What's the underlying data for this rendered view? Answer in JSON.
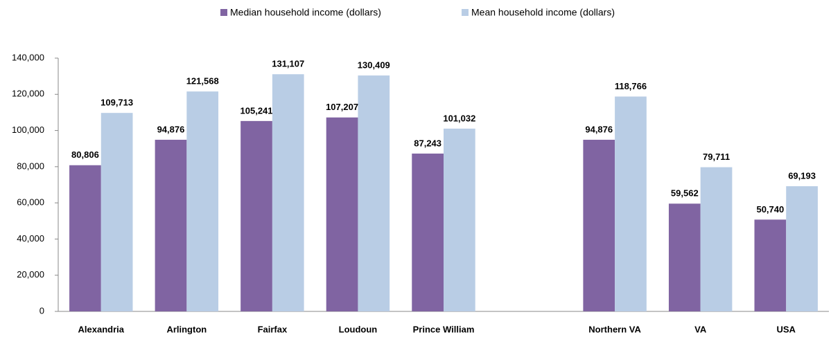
{
  "chart_data": {
    "type": "bar",
    "categories": [
      "Alexandria",
      "Arlington",
      "Fairfax",
      "Loudoun",
      "Prince William",
      null,
      "Northern VA",
      "VA",
      "USA"
    ],
    "series": [
      {
        "name": "Median household income (dollars)",
        "color": "#8064a2",
        "values": [
          80806,
          94876,
          105241,
          107207,
          87243,
          null,
          94876,
          59562,
          50740
        ],
        "value_labels": [
          "80,806",
          "94,876",
          "105,241",
          "107,207",
          "87,243",
          null,
          "94,876",
          "59,562",
          "50,740"
        ]
      },
      {
        "name": "Mean household income (dollars)",
        "color": "#b9cde5",
        "values": [
          109713,
          121568,
          131107,
          130409,
          101032,
          null,
          118766,
          79711,
          69193
        ],
        "value_labels": [
          "109,713",
          "121,568",
          "131,107",
          "130,409",
          "101,032",
          null,
          "118,766",
          "79,711",
          "69,193"
        ]
      }
    ],
    "ylim": [
      0,
      140000
    ],
    "yticks": [
      0,
      {
        "value": 20000,
        "label": "20,000"
      },
      {
        "value": 40000,
        "label": "40,000"
      },
      {
        "value": 60000,
        "label": "60,000"
      },
      {
        "value": 80000,
        "label": "80,000"
      },
      {
        "value": 100000,
        "label": "100,000"
      },
      {
        "value": 120000,
        "label": "120,000"
      },
      {
        "value": 140000,
        "label": "140,000"
      }
    ],
    "legend": "top"
  }
}
